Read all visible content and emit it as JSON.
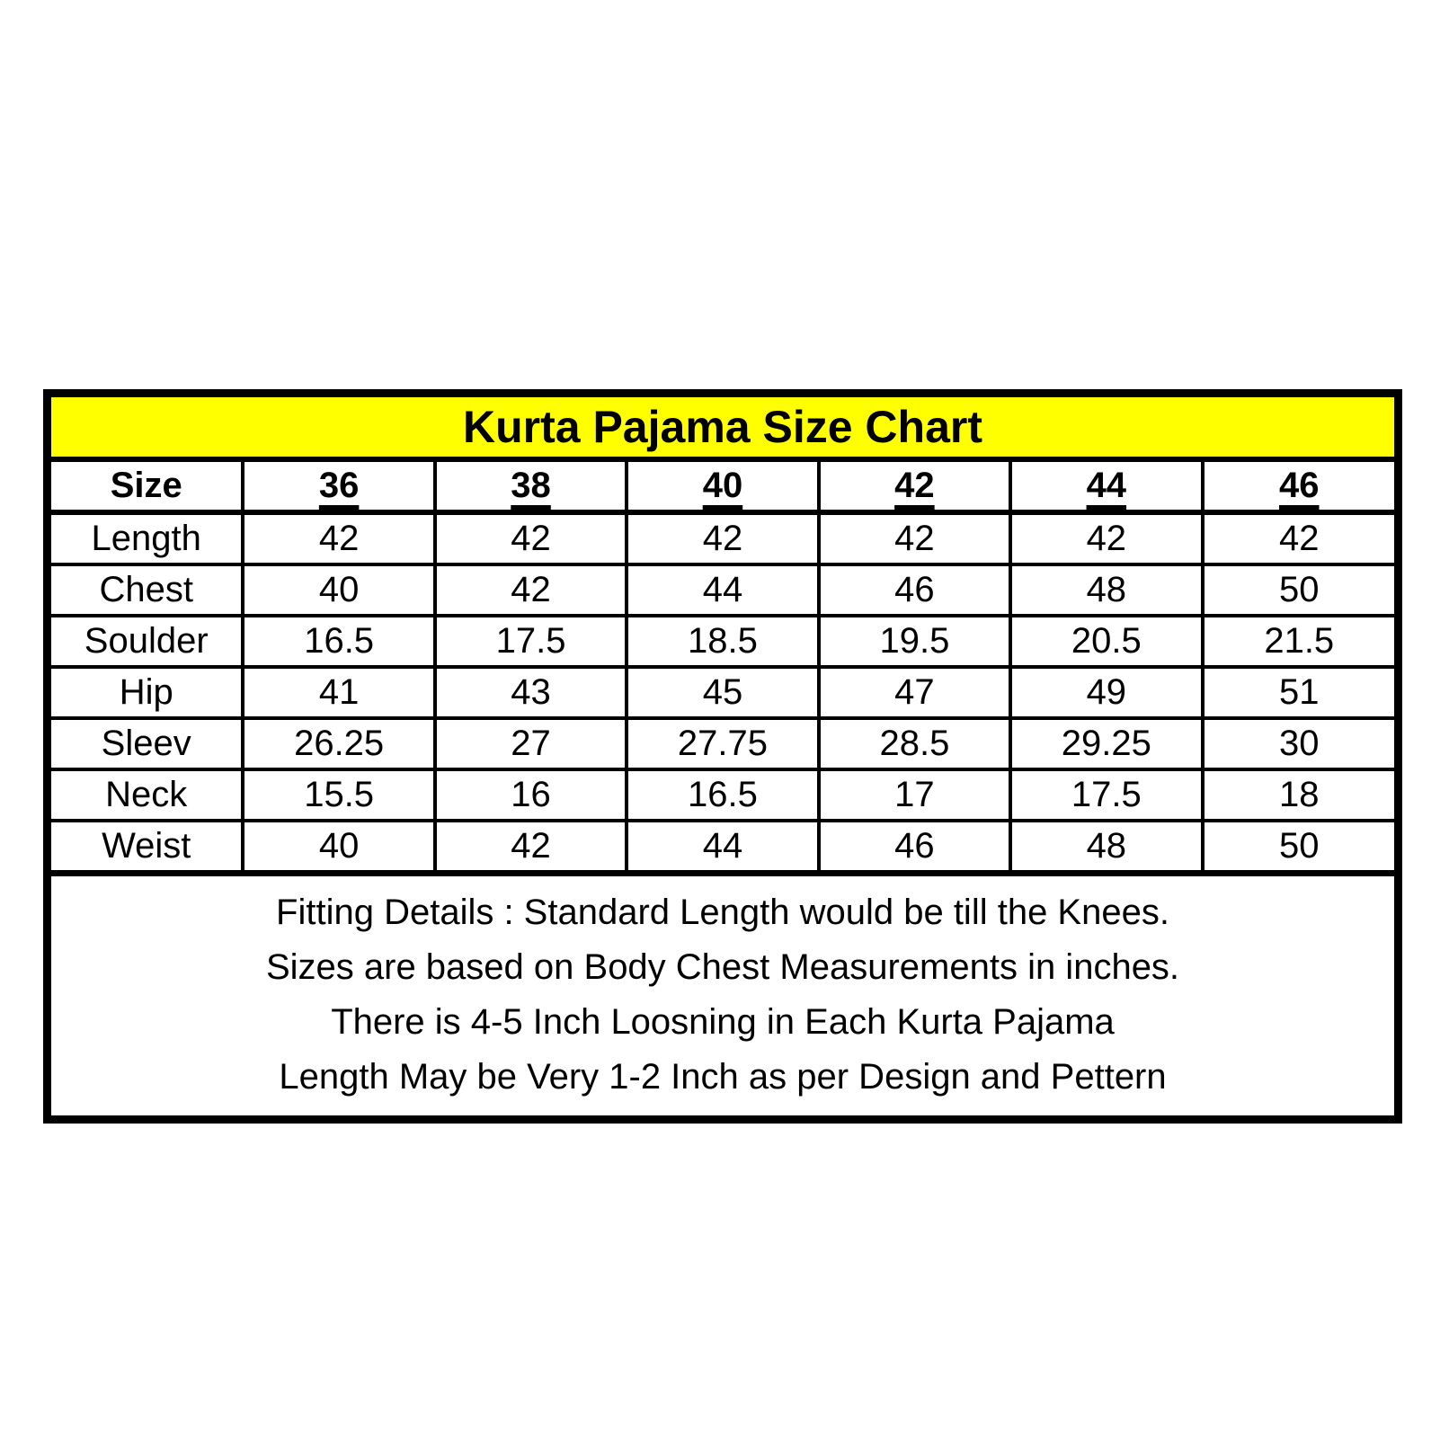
{
  "title": "Kurta Pajama Size Chart",
  "colors": {
    "title_background": "#FFFF00",
    "border": "#000000",
    "text": "#000000",
    "page_background": "#FFFFFF"
  },
  "chart_data": {
    "type": "table",
    "title": "Kurta Pajama Size Chart",
    "columns": [
      "Size",
      "36",
      "38",
      "40",
      "42",
      "44",
      "46"
    ],
    "rows": [
      {
        "label": "Length",
        "values": [
          "42",
          "42",
          "42",
          "42",
          "42",
          "42"
        ]
      },
      {
        "label": "Chest",
        "values": [
          "40",
          "42",
          "44",
          "46",
          "48",
          "50"
        ]
      },
      {
        "label": "Soulder",
        "values": [
          "16.5",
          "17.5",
          "18.5",
          "19.5",
          "20.5",
          "21.5"
        ]
      },
      {
        "label": "Hip",
        "values": [
          "41",
          "43",
          "45",
          "47",
          "49",
          "51"
        ]
      },
      {
        "label": "Sleev",
        "values": [
          "26.25",
          "27",
          "27.75",
          "28.5",
          "29.25",
          "30"
        ]
      },
      {
        "label": "Neck",
        "values": [
          "15.5",
          "16",
          "16.5",
          "17",
          "17.5",
          "18"
        ]
      },
      {
        "label": "Weist",
        "values": [
          "40",
          "42",
          "44",
          "46",
          "48",
          "50"
        ]
      }
    ],
    "notes": [
      "Fitting Details : Standard Length would be till the Knees.",
      "Sizes are based on Body Chest Measurements in inches.",
      "There is 4-5 Inch Loosning in Each Kurta Pajama",
      "Length May be Very 1-2 Inch as per Design and Pettern"
    ]
  }
}
